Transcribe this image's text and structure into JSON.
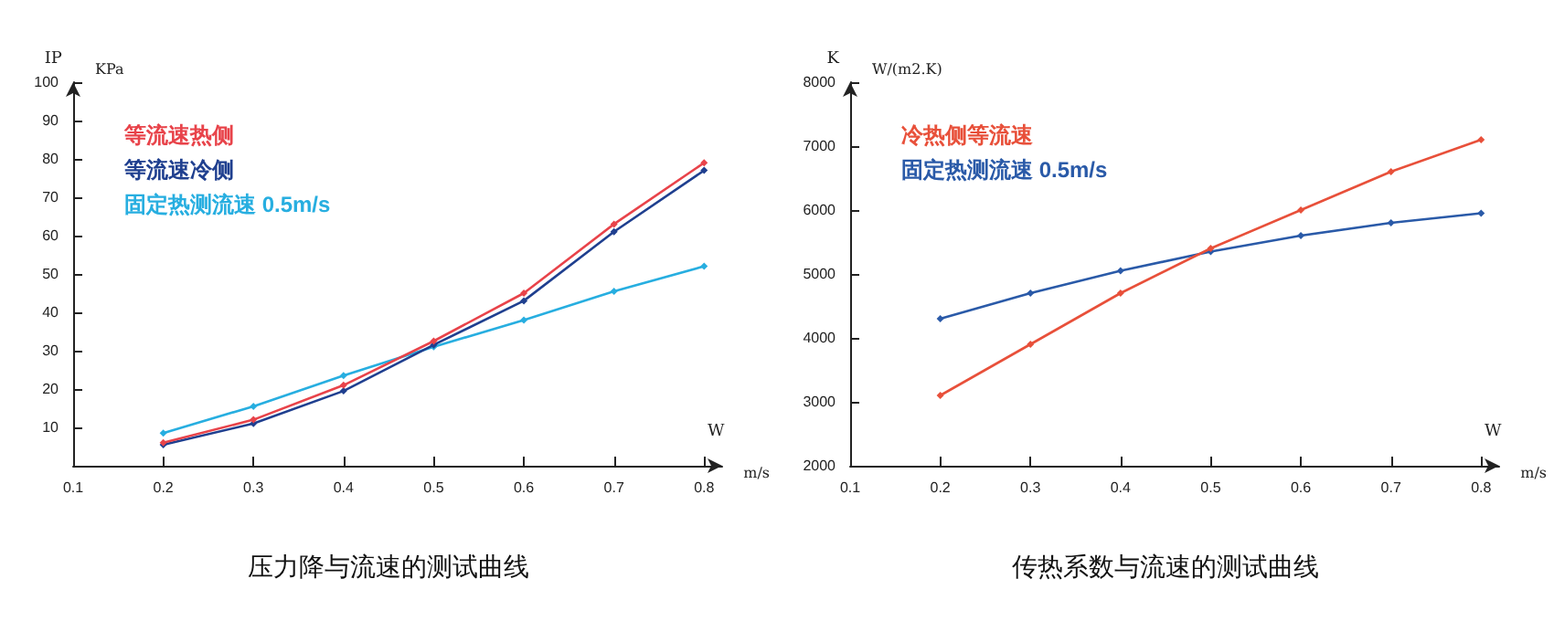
{
  "chart_data": [
    {
      "type": "line",
      "title": "压力降与流速的测试曲线",
      "ylabel": "IP",
      "xlabel": "W",
      "annotations": [
        "KPa",
        "m/s"
      ],
      "xlim": [
        0.1,
        0.82
      ],
      "xticks": [
        0.1,
        0.2,
        0.3,
        0.4,
        0.5,
        0.6,
        0.7,
        0.8
      ],
      "ylim": [
        0,
        100
      ],
      "yticks": [
        10,
        20,
        30,
        40,
        50,
        60,
        70,
        80,
        90,
        100
      ],
      "grid": false,
      "legend": "top left",
      "marker": "diamond",
      "line_style": "solid",
      "x": [
        0.2,
        0.3,
        0.4,
        0.5,
        0.6,
        0.7,
        0.8
      ],
      "series": [
        {
          "name": "等流速热侧",
          "color": "#e8434a",
          "values": [
            6,
            12,
            21,
            32.5,
            45,
            63,
            79
          ]
        },
        {
          "name": "等流速冷侧",
          "color": "#1f3f8f",
          "values": [
            5.5,
            11,
            19.5,
            31.5,
            43,
            61,
            77
          ]
        },
        {
          "name": "固定热测流速 0.5m/s",
          "color": "#27aee0",
          "values": [
            8.5,
            15.5,
            23.5,
            31,
            38,
            45.5,
            52
          ]
        }
      ]
    },
    {
      "type": "line",
      "title": "传热系数与流速的测试曲线",
      "ylabel": "K",
      "xlabel": "W",
      "annotations": [
        "W/(m2.K)",
        "m/s"
      ],
      "xlim": [
        0.1,
        0.82
      ],
      "xticks": [
        0.1,
        0.2,
        0.3,
        0.4,
        0.5,
        0.6,
        0.7,
        0.8
      ],
      "ylim": [
        2000,
        8000
      ],
      "yticks": [
        2000,
        3000,
        4000,
        5000,
        6000,
        7000,
        8000
      ],
      "grid": false,
      "legend": "top left",
      "marker": "diamond",
      "line_style": "solid",
      "x": [
        0.2,
        0.3,
        0.4,
        0.5,
        0.6,
        0.7,
        0.8
      ],
      "series": [
        {
          "name": "冷热侧等流速",
          "color": "#e8503a",
          "values": [
            3100,
            3900,
            4700,
            5400,
            6000,
            6600,
            7100
          ]
        },
        {
          "name": "固定热测流速 0.5m/s",
          "color": "#2a5aa8",
          "values": [
            4300,
            4700,
            5050,
            5350,
            5600,
            5800,
            5950
          ]
        }
      ]
    }
  ]
}
